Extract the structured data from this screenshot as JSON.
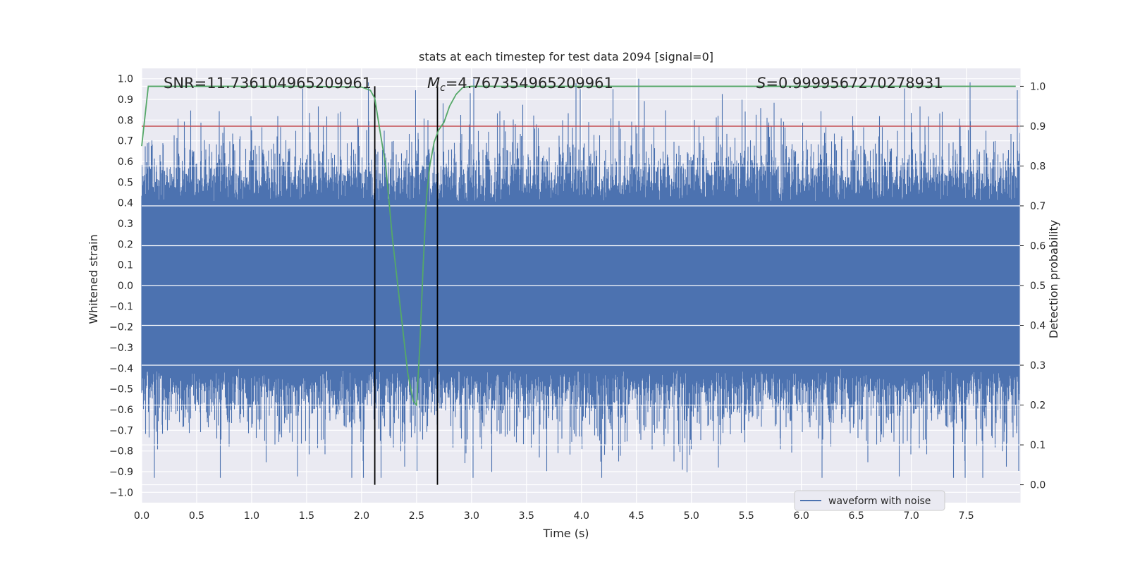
{
  "chart_data": {
    "type": "line",
    "title": "stats at each timestep for test data 2094 [signal=0]",
    "xlabel": "Time (s)",
    "ylabel": "Whitened strain",
    "y2label": "Detection probability",
    "xlim": [
      0,
      7.99
    ],
    "ylim": [
      -1.05,
      1.05
    ],
    "y2lim": [
      -0.045,
      1.045
    ],
    "xticks": [
      "0.0",
      "0.5",
      "1.0",
      "1.5",
      "2.0",
      "2.5",
      "3.0",
      "3.5",
      "4.0",
      "4.5",
      "5.0",
      "5.5",
      "6.0",
      "6.5",
      "7.0",
      "7.5"
    ],
    "yticks": [
      "1.0",
      "0.9",
      "0.8",
      "0.7",
      "0.6",
      "0.5",
      "0.4",
      "0.3",
      "0.2",
      "0.1",
      "0.0",
      "−0.1",
      "−0.2",
      "−0.3",
      "−0.4",
      "−0.5",
      "−0.6",
      "−0.7",
      "−0.8",
      "−0.9",
      "−1.0"
    ],
    "y2ticks": [
      "1.0",
      "0.9",
      "0.8",
      "0.7",
      "0.6",
      "0.5",
      "0.4",
      "0.3",
      "0.2",
      "0.1",
      "0.0"
    ],
    "annotations": {
      "snr": "SNR=11.736104965209961",
      "mc_symbol": "M",
      "mc_sub": "c",
      "mc_value": "=4.767354965209961",
      "s_symbol": "S",
      "s_value": "=0.9999567270278931"
    },
    "threshold": {
      "value": 0.9,
      "axis": "y2",
      "color": "#c44e52"
    },
    "vlines": [
      2.12,
      2.69
    ],
    "series": [
      {
        "name": "waveform with noise",
        "color": "#4c72b0",
        "axis": "y1",
        "description": "whitened noise, approximately uniform amplitude",
        "envelope_max": 1.0,
        "envelope_min": -0.93
      },
      {
        "name": "detection probability",
        "color": "#55a868",
        "axis": "y2",
        "x": [
          0.0,
          0.06,
          0.1,
          0.2,
          0.5,
          1.0,
          1.5,
          2.0,
          2.08,
          2.12,
          2.16,
          2.22,
          2.28,
          2.35,
          2.42,
          2.47,
          2.5,
          2.53,
          2.56,
          2.59,
          2.62,
          2.66,
          2.7,
          2.75,
          2.8,
          2.86,
          2.92,
          3.0,
          3.5,
          4.0,
          5.0,
          6.0,
          7.0,
          7.95
        ],
        "y": [
          0.85,
          1.0,
          1.0,
          1.0,
          1.0,
          1.0,
          1.0,
          0.998,
          0.99,
          0.97,
          0.9,
          0.8,
          0.62,
          0.45,
          0.28,
          0.21,
          0.2,
          0.35,
          0.55,
          0.72,
          0.8,
          0.86,
          0.89,
          0.91,
          0.95,
          0.98,
          0.997,
          1.0,
          1.0,
          1.0,
          1.0,
          1.0,
          1.0,
          1.0
        ]
      }
    ],
    "legend": {
      "label": "waveform with noise",
      "placement": "lower-right"
    }
  }
}
